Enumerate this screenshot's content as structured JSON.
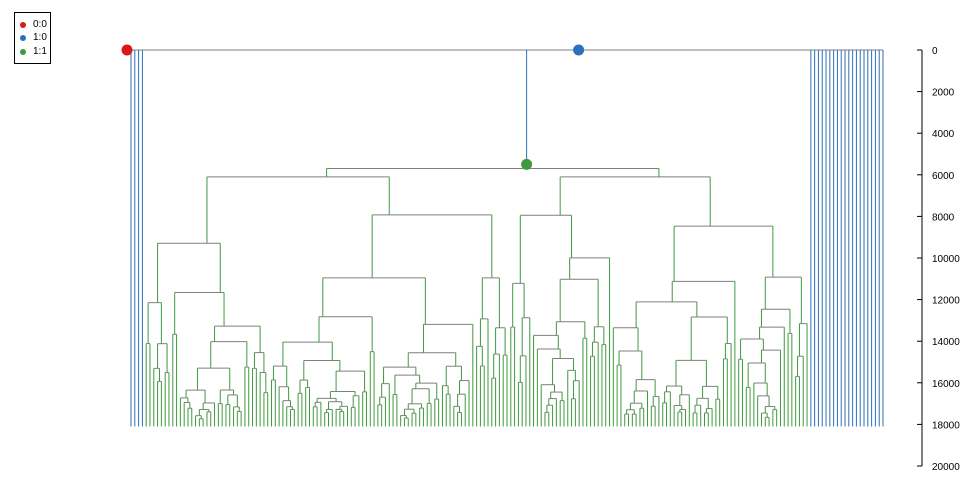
{
  "legend": {
    "items": [
      {
        "label": "0:0",
        "color": "#d7191c"
      },
      {
        "label": "1:0",
        "color": "#2c6fbb"
      },
      {
        "label": "1:1",
        "color": "#3e9a3e"
      }
    ]
  },
  "chart_data": {
    "type": "tree",
    "y_axis": {
      "side": "right",
      "reversed": true,
      "range": [
        0,
        20000
      ],
      "ticks": [
        "0",
        "2000",
        "4000",
        "6000",
        "8000",
        "10000",
        "12000",
        "14000",
        "16000",
        "18000",
        "20000"
      ],
      "tick_values": [
        0,
        2000,
        4000,
        6000,
        8000,
        10000,
        12000,
        14000,
        16000,
        18000,
        20000
      ]
    },
    "grid": false,
    "legend_position": "top-left",
    "root_time": 0,
    "state_colors": {
      "0:0": "#d7191c",
      "1:0": "#2c6fbb",
      "1:1": "#3e9a3e"
    },
    "branch_color_internal": "#7f7f7f",
    "tip_time": 18100,
    "tips_total": 199,
    "tips_blue_left": 4,
    "tips_blue_right": 20,
    "tips_green": 175,
    "node_markers": [
      {
        "state": "0:0",
        "time": 0,
        "position": "root"
      },
      {
        "state": "1:0",
        "time": 0,
        "position": "main-branch"
      },
      {
        "state": "1:1",
        "time": 5500,
        "position": "clade-root"
      }
    ],
    "clade_root_time": 5700,
    "main_split_time": 6100
  }
}
